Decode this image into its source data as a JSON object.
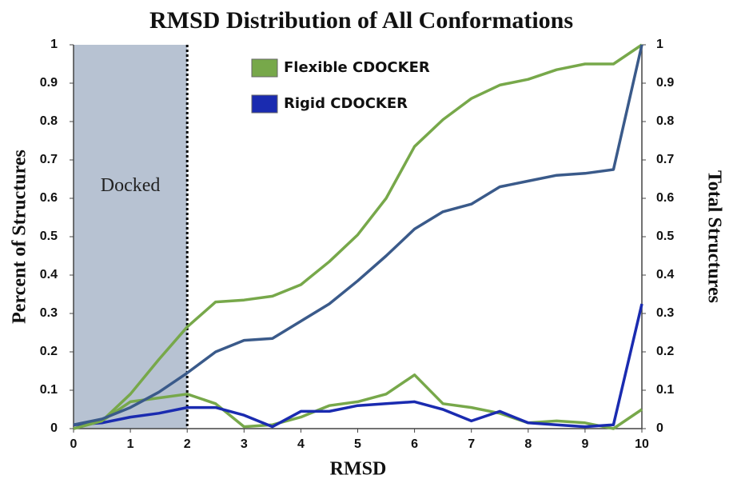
{
  "chart_data": {
    "type": "line",
    "title": "RMSD Distribution of All Conformations",
    "x_label": "RMSD",
    "y_label": "Percent of Structures",
    "y2_label": "Total Structures",
    "x": [
      0,
      0.5,
      1,
      1.5,
      2,
      2.5,
      3,
      3.5,
      4,
      4.5,
      5,
      5.5,
      6,
      6.5,
      7,
      7.5,
      8,
      8.5,
      9,
      9.5,
      10
    ],
    "xlim": [
      0,
      10
    ],
    "xticks": [
      0,
      1,
      2,
      3,
      4,
      5,
      6,
      7,
      8,
      9,
      10
    ],
    "ylim": [
      0,
      1
    ],
    "yticks": [
      0,
      0.1,
      0.2,
      0.3,
      0.4,
      0.5,
      0.6,
      0.7,
      0.8,
      0.9,
      1
    ],
    "y2lim": [
      0,
      1
    ],
    "y2ticks": [
      0,
      0.1,
      0.2,
      0.3,
      0.4,
      0.5,
      0.6,
      0.7,
      0.8,
      0.9,
      1
    ],
    "docked_region": {
      "label": "Docked",
      "range": [
        0,
        2
      ]
    },
    "series": [
      {
        "name": "Flexible CDOCKER",
        "color": "#77a84a",
        "values": [
          0.0,
          0.02,
          0.07,
          0.08,
          0.09,
          0.065,
          0.005,
          0.01,
          0.03,
          0.06,
          0.07,
          0.09,
          0.14,
          0.065,
          0.055,
          0.04,
          0.015,
          0.02,
          0.015,
          0.0,
          0.05
        ]
      },
      {
        "name": "Rigid CDOCKER",
        "color": "#1a2bb0",
        "values": [
          0.01,
          0.015,
          0.03,
          0.04,
          0.055,
          0.055,
          0.035,
          0.005,
          0.045,
          0.045,
          0.06,
          0.065,
          0.07,
          0.05,
          0.02,
          0.045,
          0.015,
          0.01,
          0.005,
          0.01,
          0.325
        ]
      },
      {
        "color": "#77a84a",
        "axis": "y2",
        "values": [
          0.0,
          0.02,
          0.09,
          0.18,
          0.265,
          0.33,
          0.335,
          0.345,
          0.375,
          0.435,
          0.505,
          0.6,
          0.735,
          0.805,
          0.86,
          0.895,
          0.91,
          0.935,
          0.95,
          0.95,
          1.0
        ]
      },
      {
        "color": "#3a5a8a",
        "axis": "y2",
        "values": [
          0.01,
          0.025,
          0.055,
          0.095,
          0.145,
          0.2,
          0.23,
          0.235,
          0.28,
          0.325,
          0.385,
          0.45,
          0.52,
          0.565,
          0.585,
          0.63,
          0.645,
          0.66,
          0.665,
          0.675,
          1.0
        ]
      }
    ]
  }
}
